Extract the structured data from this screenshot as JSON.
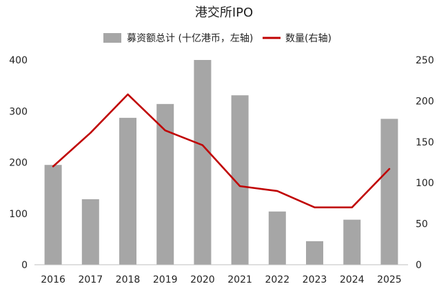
{
  "chart_data": {
    "type": "bar",
    "title": "港交所IPO",
    "categories": [
      "2016",
      "2017",
      "2018",
      "2019",
      "2020",
      "2021",
      "2022",
      "2023",
      "2024",
      "2025"
    ],
    "series": [
      {
        "name": "募资额总计 (十亿港币，左轴)",
        "type": "bar",
        "axis": "left",
        "color": "#a6a6a6",
        "values": [
          195,
          128,
          287,
          314,
          400,
          331,
          104,
          46,
          88,
          285
        ]
      },
      {
        "name": "数量(右轴)",
        "type": "line",
        "axis": "right",
        "color": "#c00000",
        "values": [
          120,
          161,
          208,
          164,
          146,
          96,
          90,
          70,
          70,
          117
        ]
      }
    ],
    "y_left": {
      "range": [
        0,
        400
      ],
      "ticks": [
        "0",
        "100",
        "200",
        "300",
        "400"
      ]
    },
    "y_right": {
      "range": [
        0,
        250
      ],
      "ticks": [
        "0",
        "50",
        "100",
        "150",
        "200",
        "250"
      ]
    },
    "grid": false,
    "legend_position": "top"
  }
}
